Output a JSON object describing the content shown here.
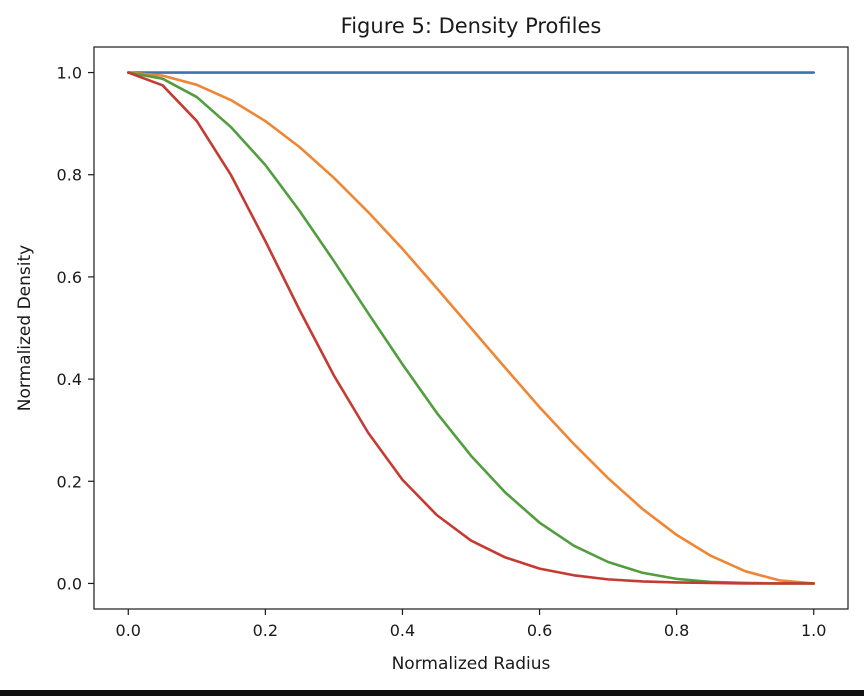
{
  "chart_data": {
    "type": "line",
    "title": "Figure 5: Density Profiles",
    "xlabel": "Normalized Radius",
    "ylabel": "Normalized Density",
    "xlim": [
      -0.05,
      1.05
    ],
    "ylim": [
      -0.05,
      1.05
    ],
    "x_ticks": [
      0.0,
      0.2,
      0.4,
      0.6,
      0.8,
      1.0
    ],
    "x_tick_labels": [
      "0.0",
      "0.2",
      "0.4",
      "0.6",
      "0.8",
      "1.0"
    ],
    "y_ticks": [
      0.0,
      0.2,
      0.4,
      0.6,
      0.8,
      1.0
    ],
    "y_tick_labels": [
      "0.0",
      "0.2",
      "0.4",
      "0.6",
      "0.8",
      "1.0"
    ],
    "grid": false,
    "legend": "none",
    "series": [
      {
        "color": "#3b75af",
        "x": [
          0.0,
          0.1,
          0.2,
          0.3,
          0.4,
          0.5,
          0.6,
          0.7,
          0.8,
          0.9,
          1.0
        ],
        "y": [
          1.0,
          1.0,
          1.0,
          1.0,
          1.0,
          1.0,
          1.0,
          1.0,
          1.0,
          1.0,
          1.0
        ]
      },
      {
        "color": "#ef8636",
        "x": [
          0.0,
          0.05,
          0.1,
          0.15,
          0.2,
          0.25,
          0.3,
          0.35,
          0.4,
          0.45,
          0.5,
          0.55,
          0.6,
          0.65,
          0.7,
          0.75,
          0.8,
          0.85,
          0.9,
          0.95,
          1.0
        ],
        "y": [
          1.0,
          0.994,
          0.976,
          0.946,
          0.905,
          0.854,
          0.794,
          0.727,
          0.655,
          0.578,
          0.5,
          0.422,
          0.345,
          0.273,
          0.206,
          0.146,
          0.095,
          0.054,
          0.024,
          0.006,
          0.0
        ]
      },
      {
        "color": "#519e3e",
        "x": [
          0.0,
          0.05,
          0.1,
          0.15,
          0.2,
          0.25,
          0.3,
          0.35,
          0.4,
          0.45,
          0.5,
          0.55,
          0.6,
          0.65,
          0.7,
          0.75,
          0.8,
          0.85,
          0.9,
          0.95,
          1.0
        ],
        "y": [
          1.0,
          0.988,
          0.952,
          0.893,
          0.819,
          0.729,
          0.631,
          0.529,
          0.429,
          0.334,
          0.25,
          0.178,
          0.119,
          0.074,
          0.042,
          0.021,
          0.009,
          0.003,
          0.001,
          0.0,
          0.0
        ]
      },
      {
        "color": "#c53a32",
        "x": [
          0.0,
          0.05,
          0.1,
          0.15,
          0.2,
          0.25,
          0.3,
          0.35,
          0.4,
          0.45,
          0.5,
          0.55,
          0.6,
          0.65,
          0.7,
          0.75,
          0.8,
          0.85,
          0.9,
          0.95,
          1.0
        ],
        "y": [
          1.0,
          0.975,
          0.905,
          0.799,
          0.67,
          0.535,
          0.407,
          0.295,
          0.203,
          0.134,
          0.084,
          0.051,
          0.029,
          0.016,
          0.008,
          0.004,
          0.002,
          0.001,
          0.0,
          0.0,
          0.0
        ]
      }
    ]
  }
}
